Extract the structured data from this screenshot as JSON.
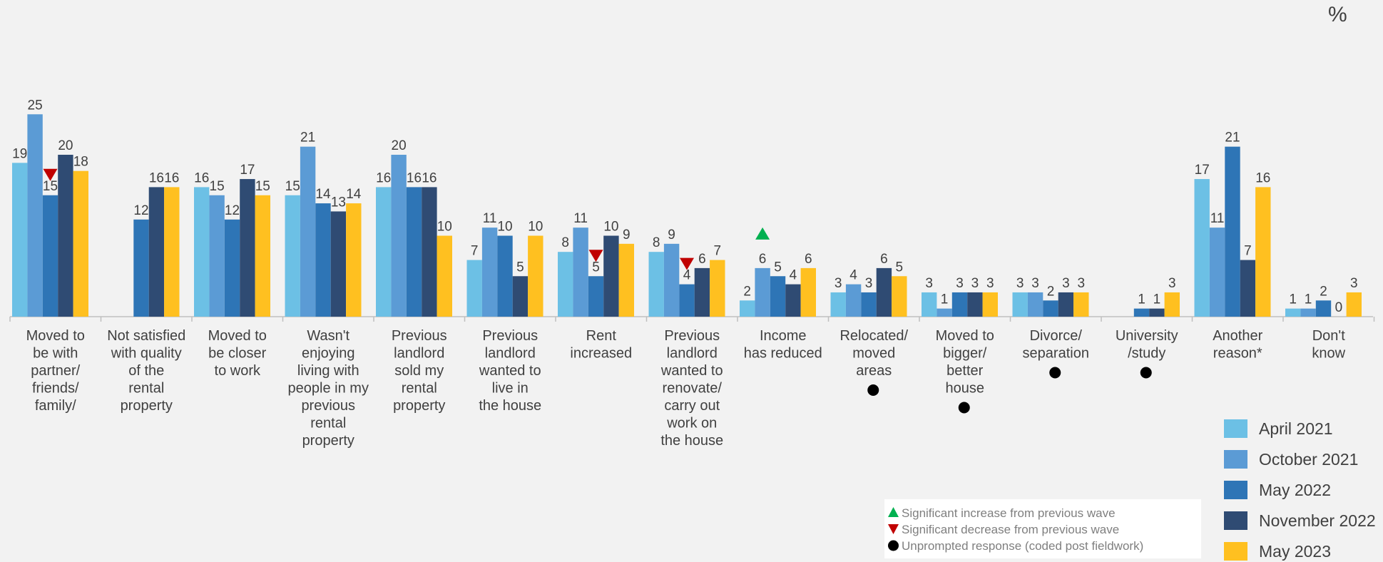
{
  "unit_label": "%",
  "chart_data": {
    "type": "bar",
    "categories": [
      "Moved to be with partner/ friends/ family/",
      "Not satisfied with quality of the rental property",
      "Moved to be closer to work",
      "Wasn't enjoying living with people in my previous rental property",
      "Previous landlord sold my rental property",
      "Previous landlord wanted to live in the house",
      "Rent increased",
      "Previous landlord wanted to renovate/ carry out work on the house",
      "Income has reduced",
      "Relocated/ moved areas",
      "Moved to bigger/ better house",
      "Divorce/ separation",
      "University /study",
      "Another reason*",
      "Don't know"
    ],
    "category_lines": [
      [
        "Moved to",
        "be with",
        "partner/",
        "friends/",
        "family/"
      ],
      [
        "Not satisfied",
        "with quality",
        "of the",
        "rental",
        "property"
      ],
      [
        "Moved to",
        "be closer",
        "to work"
      ],
      [
        "Wasn't",
        "enjoying",
        "living with",
        "people in my",
        "previous",
        "rental",
        "property"
      ],
      [
        "Previous",
        "landlord",
        "sold my",
        "rental",
        "property"
      ],
      [
        "Previous",
        "landlord",
        "wanted to",
        "live in",
        "the house"
      ],
      [
        "Rent",
        "increased"
      ],
      [
        "Previous",
        "landlord",
        "wanted to",
        "renovate/",
        "carry out",
        "work on",
        "the house"
      ],
      [
        "Income",
        "has reduced"
      ],
      [
        "Relocated/",
        "moved",
        "areas"
      ],
      [
        "Moved to",
        "bigger/",
        "better",
        "house"
      ],
      [
        "Divorce/",
        "separation"
      ],
      [
        "University",
        "/study"
      ],
      [
        "Another",
        "reason*"
      ],
      [
        "Don't",
        "know"
      ]
    ],
    "series": [
      {
        "name": "April 2021",
        "color": "#6cc0e5",
        "values": [
          19,
          null,
          16,
          15,
          16,
          7,
          8,
          8,
          2,
          3,
          3,
          3,
          null,
          17,
          1
        ]
      },
      {
        "name": "October 2021",
        "color": "#5b9bd5",
        "values": [
          25,
          null,
          15,
          21,
          20,
          11,
          11,
          9,
          6,
          4,
          1,
          3,
          null,
          11,
          1
        ]
      },
      {
        "name": "May 2022",
        "color": "#2e75b6",
        "values": [
          15,
          12,
          12,
          14,
          16,
          10,
          5,
          4,
          5,
          3,
          3,
          2,
          1,
          21,
          2
        ]
      },
      {
        "name": "November 2022",
        "color": "#2f4b73",
        "values": [
          20,
          16,
          17,
          13,
          16,
          5,
          10,
          6,
          4,
          6,
          3,
          3,
          1,
          7,
          0
        ]
      },
      {
        "name": "May 2023",
        "color": "#ffc020",
        "values": [
          18,
          16,
          15,
          14,
          10,
          10,
          9,
          7,
          6,
          5,
          3,
          3,
          3,
          16,
          3
        ]
      }
    ],
    "markers": [
      {
        "category": 0,
        "series": 2,
        "type": "decrease"
      },
      {
        "category": 6,
        "series": 2,
        "type": "decrease"
      },
      {
        "category": 7,
        "series": 2,
        "type": "decrease"
      },
      {
        "category": 8,
        "series": 1,
        "type": "increase"
      }
    ],
    "unprompted_categories": [
      9,
      10,
      11,
      12
    ],
    "ylim": [
      0,
      27
    ],
    "data_labels": true,
    "gridlines": false,
    "legend_position": "bottom-right"
  },
  "key": {
    "increase": "Significant increase from previous wave",
    "decrease": "Significant decrease from previous wave",
    "unprompted": "Unprompted response (coded post fieldwork)",
    "increase_color": "#00b050",
    "decrease_color": "#c00000",
    "unprompted_color": "#000000"
  }
}
